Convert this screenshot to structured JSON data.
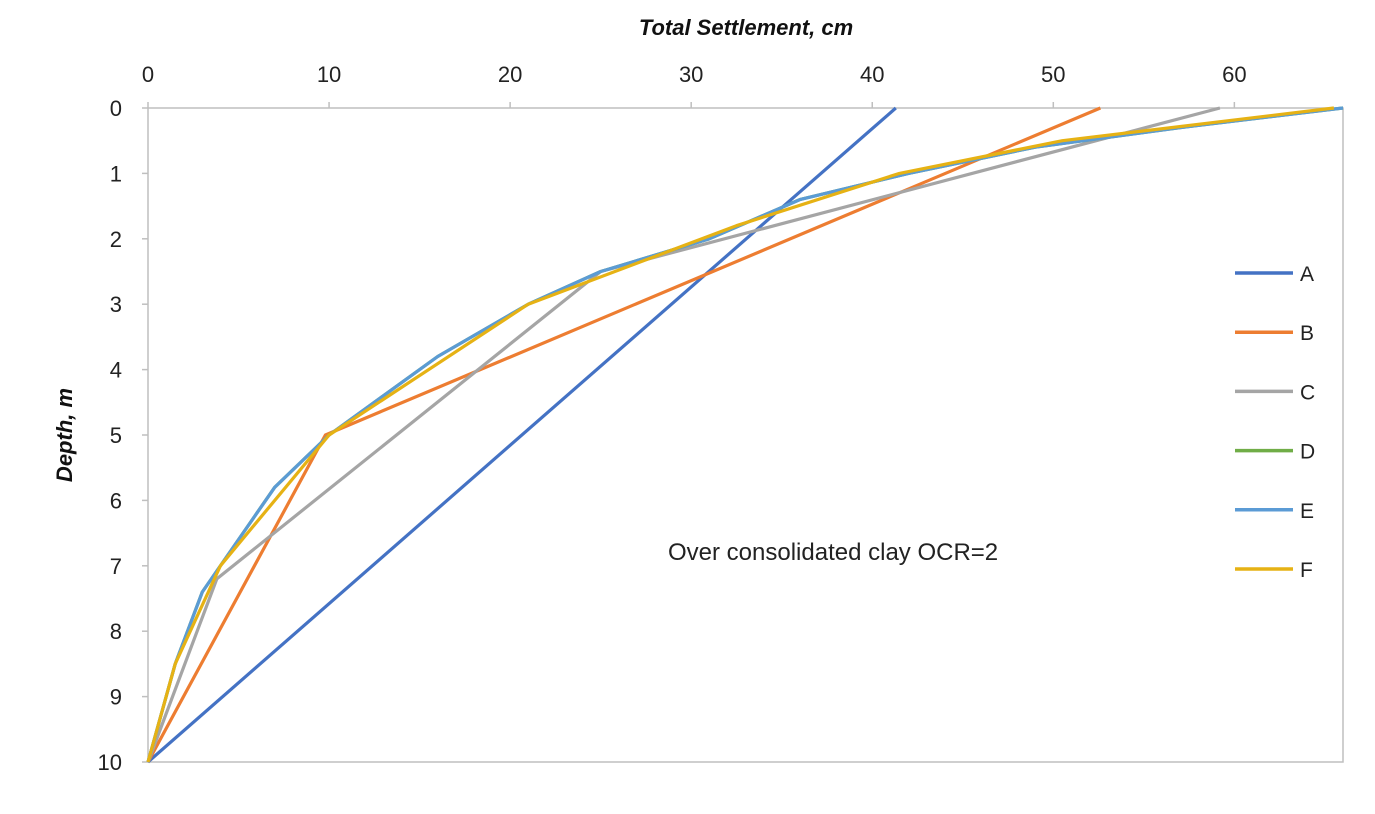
{
  "chart_data": {
    "type": "line",
    "title": "",
    "xlabel": "Total Settlement, cm",
    "ylabel": "Depth, m",
    "annotation": "Over consolidated clay OCR=2",
    "xlim": [
      0,
      66
    ],
    "ylim": [
      0,
      10
    ],
    "x_axis_position": "top",
    "y_axis_inverted": true,
    "x_ticks": [
      0,
      10,
      20,
      30,
      40,
      50,
      60
    ],
    "y_ticks": [
      0,
      1,
      2,
      3,
      4,
      5,
      6,
      7,
      8,
      9,
      10
    ],
    "grid": false,
    "legend_position": "right",
    "series": [
      {
        "name": "A",
        "color": "#4472C4",
        "x": [
          41.3,
          0
        ],
        "y": [
          0,
          10
        ]
      },
      {
        "name": "B",
        "color": "#ED7D31",
        "x": [
          52.6,
          9.8,
          0
        ],
        "y": [
          0,
          5,
          10
        ]
      },
      {
        "name": "C",
        "color": "#A5A5A5",
        "x": [
          59.2,
          25,
          3.8,
          0
        ],
        "y": [
          0,
          2.5,
          7.2,
          10
        ]
      },
      {
        "name": "D",
        "color": "#70AD47",
        "x": [
          66,
          57,
          49,
          42,
          36,
          31,
          25,
          21,
          16,
          10,
          7,
          5,
          3,
          1.5,
          0
        ],
        "y": [
          0,
          0.3,
          0.6,
          1.0,
          1.4,
          2.0,
          2.5,
          3.0,
          3.8,
          5.0,
          5.8,
          6.6,
          7.4,
          8.5,
          10
        ]
      },
      {
        "name": "E",
        "color": "#5B9BD5",
        "x": [
          66,
          57,
          49,
          42,
          36,
          31,
          25,
          21,
          16,
          10,
          7,
          5,
          3,
          1.5,
          0
        ],
        "y": [
          0,
          0.3,
          0.6,
          1.0,
          1.4,
          2.0,
          2.5,
          3.0,
          3.8,
          5.0,
          5.8,
          6.6,
          7.4,
          8.5,
          10
        ]
      },
      {
        "name": "F",
        "color": "#E6B214",
        "x": [
          65.5,
          50.5,
          41.5,
          32.5,
          21,
          10,
          4,
          1.5,
          0
        ],
        "y": [
          0,
          0.5,
          1.0,
          1.8,
          3.0,
          5.0,
          7.0,
          8.5,
          10
        ]
      }
    ]
  }
}
